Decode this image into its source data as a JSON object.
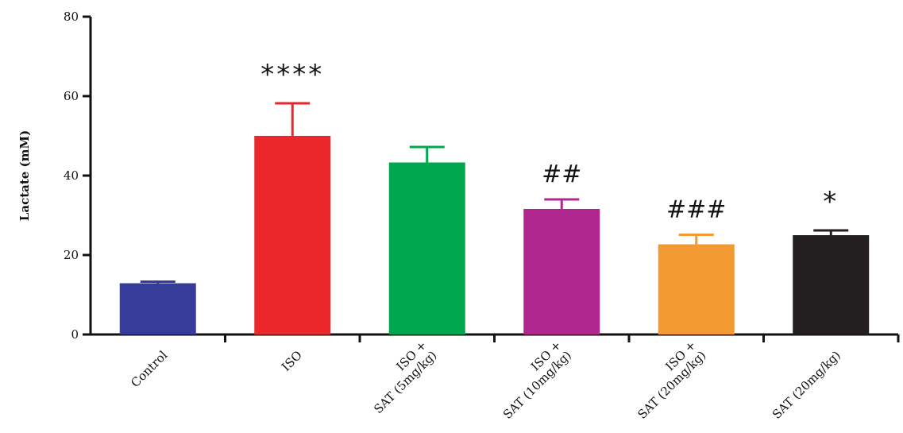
{
  "chart_data": {
    "type": "bar",
    "ylabel": "Lactate (mM)",
    "xlabel": "",
    "ylim": [
      0,
      80
    ],
    "yticks": [
      0,
      20,
      40,
      60,
      80
    ],
    "grid": false,
    "categories": [
      [
        "Control"
      ],
      [
        "ISO"
      ],
      [
        "ISO +",
        "SAT (5mg/kg)"
      ],
      [
        "ISO +",
        "SAT (10mg/kg)"
      ],
      [
        "ISO +",
        "SAT (20mg/kg)"
      ],
      [
        "SAT (20mg/kg)"
      ]
    ],
    "values": [
      12.9,
      50.0,
      43.3,
      31.6,
      22.7,
      25.0
    ],
    "errors": [
      0.4,
      8.2,
      3.9,
      2.4,
      2.4,
      1.2
    ],
    "colors": [
      "#353c99",
      "#ea272b",
      "#00a74e",
      "#b0278f",
      "#f39932",
      "#231f20"
    ],
    "annotations": [
      "",
      "****",
      "",
      "##",
      "###",
      "*"
    ]
  }
}
